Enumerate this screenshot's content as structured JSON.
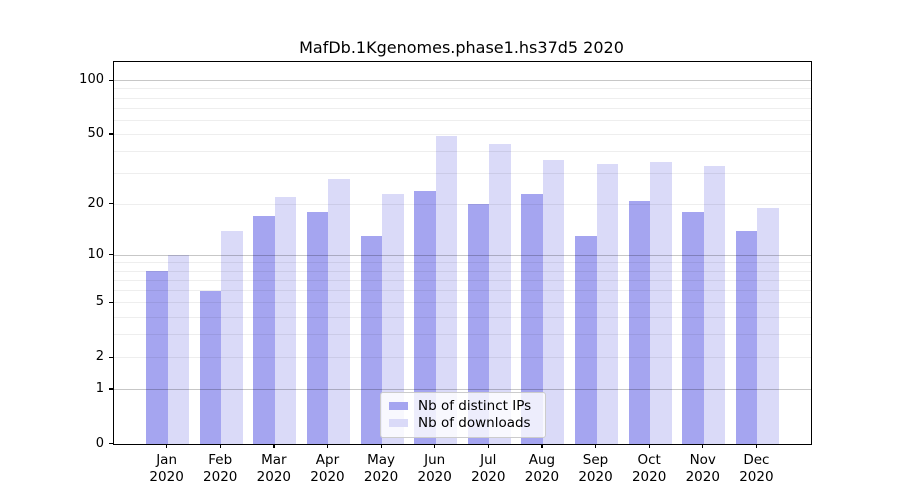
{
  "chart_data": {
    "type": "bar",
    "title": "MafDb.1Kgenomes.phase1.hs37d5 2020",
    "categories": [
      "Jan",
      "Feb",
      "Mar",
      "Apr",
      "May",
      "Jun",
      "Jul",
      "Aug",
      "Sep",
      "Oct",
      "Nov",
      "Dec"
    ],
    "year": "2020",
    "series": [
      {
        "name": "Nb of distinct IPs",
        "color": "#a5a5f0",
        "values": [
          8,
          6,
          17,
          18,
          13,
          24,
          20,
          23,
          13,
          21,
          18,
          14
        ]
      },
      {
        "name": "Nb of downloads",
        "color": "#dadaf8",
        "values": [
          10,
          14,
          22,
          28,
          23,
          49,
          44,
          36,
          34,
          35,
          33,
          19
        ]
      }
    ],
    "xlabel": "",
    "ylabel": "",
    "yscale": "log1p",
    "ylim": [
      0,
      127
    ],
    "yticks": [
      0,
      1,
      2,
      5,
      10,
      20,
      50,
      100
    ],
    "y_major_gridlines": [
      1,
      10,
      100
    ],
    "y_minor_gridlines": [
      2,
      3,
      4,
      5,
      6,
      7,
      8,
      9,
      20,
      30,
      40,
      50,
      60,
      70,
      80,
      90
    ],
    "grid": "on",
    "legend_position": "lower-center"
  }
}
